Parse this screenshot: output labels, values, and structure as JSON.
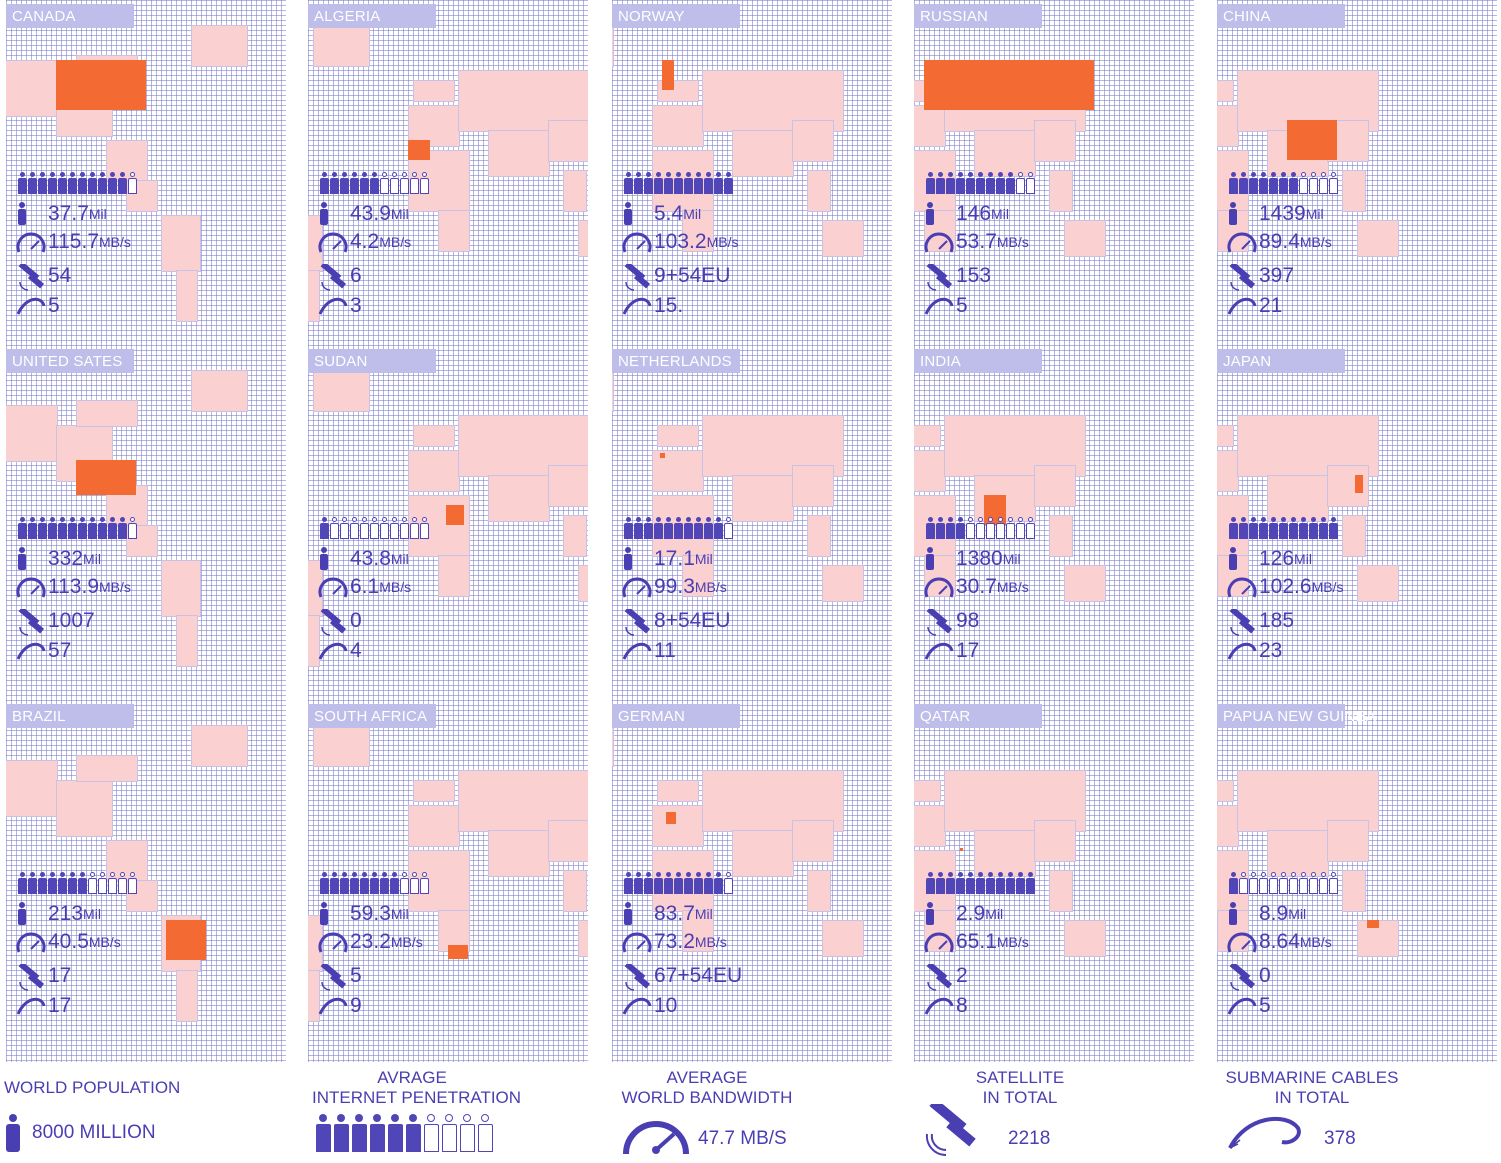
{
  "columns": [
    {
      "panels": [
        {
          "country": "CANADA",
          "people_filled": 11,
          "people_total": 12,
          "population": "37.7",
          "pop_unit": "Mil",
          "bandwidth": "115.7",
          "bw_unit": "MB/s",
          "satellites": "54",
          "cables": "5"
        },
        {
          "country": "UNITED SATES",
          "people_filled": 11,
          "people_total": 12,
          "population": "332",
          "pop_unit": "Mil",
          "bandwidth": "113.9",
          "bw_unit": "MB/s",
          "satellites": "1007",
          "cables": "57"
        },
        {
          "country": "BRAZIL",
          "people_filled": 7,
          "people_total": 12,
          "population": "213",
          "pop_unit": "Mil",
          "bandwidth": "40.5",
          "bw_unit": "MB/s",
          "satellites": "17",
          "cables": "17"
        }
      ]
    },
    {
      "panels": [
        {
          "country": "ALGERIA",
          "people_filled": 6,
          "people_total": 11,
          "population": "43.9",
          "pop_unit": "Mil",
          "bandwidth": "4.2",
          "bw_unit": "MB/s",
          "satellites": "6",
          "cables": "3"
        },
        {
          "country": "SUDAN",
          "people_filled": 1,
          "people_total": 11,
          "population": "43.8",
          "pop_unit": "Mil",
          "bandwidth": "6.1",
          "bw_unit": "MB/s",
          "satellites": "0",
          "cables": "4"
        },
        {
          "country": "SOUTH AFRICA",
          "people_filled": 8,
          "people_total": 11,
          "population": "59.3",
          "pop_unit": "Mil",
          "bandwidth": "23.2",
          "bw_unit": "MB/s",
          "satellites": "5",
          "cables": "9"
        }
      ]
    },
    {
      "panels": [
        {
          "country": "NORWAY",
          "people_filled": 11,
          "people_total": 11,
          "population": "5.4",
          "pop_unit": "Mil",
          "bandwidth": "103.2",
          "bw_unit": "MB/s",
          "satellites": "9+54EU",
          "cables": "15."
        },
        {
          "country": "NETHERLANDS",
          "people_filled": 10,
          "people_total": 11,
          "population": "17.1",
          "pop_unit": "Mil",
          "bandwidth": "99.3",
          "bw_unit": "MB/s",
          "satellites": "8+54EU",
          "cables": "11"
        },
        {
          "country": "GERMAN",
          "people_filled": 10,
          "people_total": 11,
          "population": "83.7",
          "pop_unit": "Mil",
          "bandwidth": "73.2",
          "bw_unit": "MB/s",
          "satellites": "67+54EU",
          "cables": "10"
        }
      ]
    },
    {
      "panels": [
        {
          "country": "RUSSIAN",
          "people_filled": 9,
          "people_total": 11,
          "population": "146",
          "pop_unit": "Mil",
          "bandwidth": "53.7",
          "bw_unit": "MB/s",
          "satellites": "153",
          "cables": "5"
        },
        {
          "country": "INDIA",
          "people_filled": 4,
          "people_total": 11,
          "population": "1380",
          "pop_unit": "Mil",
          "bandwidth": "30.7",
          "bw_unit": "MB/s",
          "satellites": "98",
          "cables": "17"
        },
        {
          "country": "QATAR",
          "people_filled": 11,
          "people_total": 11,
          "population": "2.9",
          "pop_unit": "Mil",
          "bandwidth": "65.1",
          "bw_unit": "MB/s",
          "satellites": "2",
          "cables": "8"
        }
      ]
    },
    {
      "panels": [
        {
          "country": "CHINA",
          "people_filled": 7,
          "people_total": 11,
          "population": "1439",
          "pop_unit": "Mil",
          "bandwidth": "89.4",
          "bw_unit": "MB/s",
          "satellites": "397",
          "cables": "21"
        },
        {
          "country": "JAPAN",
          "people_filled": 11,
          "people_total": 11,
          "population": "126",
          "pop_unit": "Mil",
          "bandwidth": "102.6",
          "bw_unit": "MB/s",
          "satellites": "185",
          "cables": "23"
        },
        {
          "country": "PAPUA NEW GUINEA",
          "people_filled": 1,
          "people_total": 11,
          "population": "8.9",
          "pop_unit": "Mil",
          "bandwidth": "8.64",
          "bw_unit": "MB/s",
          "satellites": "0",
          "cables": "5"
        }
      ]
    }
  ],
  "footer": {
    "population": {
      "title": "WORLD POPULATION",
      "value": "8000 MILLION"
    },
    "penetration": {
      "title_line1": "AVRAGE",
      "title_line2": "INTERNET PENETRATION",
      "people_filled": 6,
      "people_total": 10
    },
    "bandwidth": {
      "title_line1": "AVERAGE",
      "title_line2": "WORLD BANDWIDTH",
      "value": "47.7 MB/S"
    },
    "satellite": {
      "title_line1": "SATELLITE",
      "title_line2": "IN TOTAL",
      "value": "2218"
    },
    "cables": {
      "title_line1": "SUBMARINE CABLES",
      "title_line2": "IN TOTAL",
      "value": "378"
    }
  },
  "colors": {
    "accent": "#4a3fb2",
    "highlight": "#f36a33",
    "land": "#fbd0d0",
    "label_bar": "#bfbde9"
  }
}
